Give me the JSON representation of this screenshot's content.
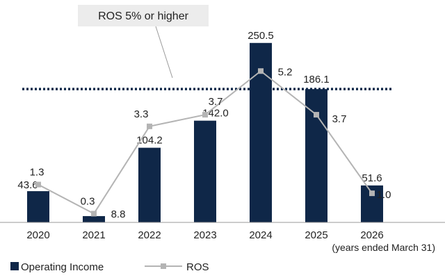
{
  "chart_data": {
    "type": "bar",
    "categories": [
      "2020",
      "2021",
      "2022",
      "2023",
      "2024",
      "2025",
      "2026"
    ],
    "series": [
      {
        "name": "Operating Income",
        "kind": "bar",
        "axis": "primary",
        "values": [
          43.6,
          8.8,
          104.2,
          142.0,
          250.5,
          186.1,
          51.6
        ],
        "labels": [
          "43.6",
          "8.8",
          "104.2",
          "142.0",
          "250.5",
          "186.1",
          "51.6"
        ],
        "color": "#0f2748"
      },
      {
        "name": "ROS",
        "kind": "line",
        "axis": "secondary",
        "values": [
          1.3,
          0.3,
          3.3,
          3.7,
          5.2,
          3.7,
          1.0
        ],
        "labels": [
          "1.3",
          "0.3",
          "3.3",
          "3.7",
          "5.2",
          "3.7",
          "1.0"
        ],
        "color": "#b4b4b4"
      }
    ],
    "x_note": "(years ended March 31)",
    "target_line": {
      "label": "ROS 5% or higher",
      "value": 5.0,
      "axis": "primary",
      "value_units": 186.1,
      "style": "dotted",
      "color": "#0f2748"
    },
    "legend": {
      "position": "bottom-left"
    },
    "ylim_primary": [
      0,
      260
    ],
    "ylim_secondary": [
      0,
      6.4
    ],
    "grid": false
  }
}
